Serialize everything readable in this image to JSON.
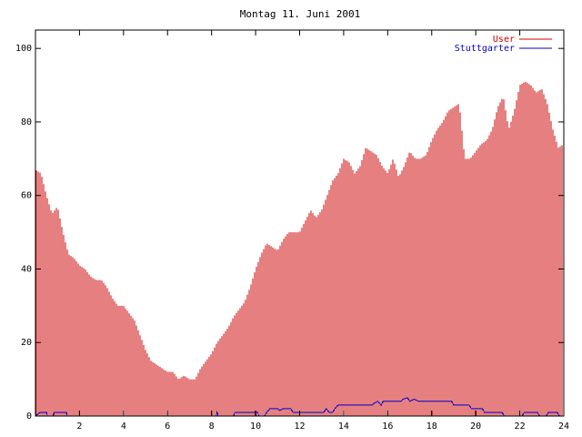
{
  "chart_data": {
    "type": "bar",
    "title": "Montag 11. Juni 2001",
    "xlabel": "",
    "ylabel": "",
    "xlim": [
      0,
      24
    ],
    "ylim": [
      0,
      105
    ],
    "x_ticks": [
      2,
      4,
      6,
      8,
      10,
      12,
      14,
      16,
      18,
      20,
      22,
      24
    ],
    "y_ticks": [
      0,
      20,
      40,
      60,
      80,
      100
    ],
    "legend_position": "top-right",
    "grid": false,
    "series": [
      {
        "name": "User",
        "render": "impulses",
        "color": "#cc0000",
        "points": [
          [
            0,
            67
          ],
          [
            0.25,
            66
          ],
          [
            0.5,
            60
          ],
          [
            0.75,
            55
          ],
          [
            1,
            57
          ],
          [
            1.25,
            50
          ],
          [
            1.5,
            44
          ],
          [
            1.75,
            43
          ],
          [
            2,
            41
          ],
          [
            2.25,
            40
          ],
          [
            2.5,
            38
          ],
          [
            2.75,
            37
          ],
          [
            3,
            37
          ],
          [
            3.25,
            35
          ],
          [
            3.5,
            32
          ],
          [
            3.75,
            30
          ],
          [
            4,
            30
          ],
          [
            4.25,
            28
          ],
          [
            4.5,
            26
          ],
          [
            4.75,
            22
          ],
          [
            5,
            18
          ],
          [
            5.25,
            15
          ],
          [
            5.5,
            14
          ],
          [
            5.75,
            13
          ],
          [
            6,
            12
          ],
          [
            6.25,
            12
          ],
          [
            6.5,
            10
          ],
          [
            6.75,
            11
          ],
          [
            7,
            10
          ],
          [
            7.25,
            10
          ],
          [
            7.5,
            13
          ],
          [
            7.75,
            15
          ],
          [
            8,
            17
          ],
          [
            8.25,
            20
          ],
          [
            8.5,
            22
          ],
          [
            8.75,
            24
          ],
          [
            9,
            27
          ],
          [
            9.25,
            29
          ],
          [
            9.5,
            31
          ],
          [
            9.75,
            35
          ],
          [
            10,
            40
          ],
          [
            10.25,
            44
          ],
          [
            10.5,
            47
          ],
          [
            10.75,
            46
          ],
          [
            11,
            45
          ],
          [
            11.25,
            48
          ],
          [
            11.5,
            50
          ],
          [
            11.75,
            50
          ],
          [
            12,
            50
          ],
          [
            12.25,
            53
          ],
          [
            12.5,
            56
          ],
          [
            12.75,
            54
          ],
          [
            13,
            56
          ],
          [
            13.25,
            60
          ],
          [
            13.5,
            64
          ],
          [
            13.75,
            66
          ],
          [
            14,
            70
          ],
          [
            14.25,
            69
          ],
          [
            14.5,
            66
          ],
          [
            14.75,
            68
          ],
          [
            15,
            73
          ],
          [
            15.25,
            72
          ],
          [
            15.5,
            71
          ],
          [
            15.75,
            68
          ],
          [
            16,
            66
          ],
          [
            16.25,
            70
          ],
          [
            16.5,
            65
          ],
          [
            16.75,
            68
          ],
          [
            17,
            72
          ],
          [
            17.25,
            70
          ],
          [
            17.5,
            70
          ],
          [
            17.75,
            71
          ],
          [
            18,
            75
          ],
          [
            18.25,
            78
          ],
          [
            18.5,
            80
          ],
          [
            18.75,
            83
          ],
          [
            19,
            84
          ],
          [
            19.25,
            85
          ],
          [
            19.5,
            70
          ],
          [
            19.75,
            70
          ],
          [
            20,
            72
          ],
          [
            20.25,
            74
          ],
          [
            20.5,
            75
          ],
          [
            20.75,
            78
          ],
          [
            21,
            84
          ],
          [
            21.25,
            87
          ],
          [
            21.5,
            78
          ],
          [
            21.75,
            83
          ],
          [
            22,
            90
          ],
          [
            22.25,
            91
          ],
          [
            22.5,
            90
          ],
          [
            22.75,
            88
          ],
          [
            23,
            89
          ],
          [
            23.25,
            85
          ],
          [
            23.5,
            78
          ],
          [
            23.75,
            73
          ],
          [
            24,
            74
          ]
        ]
      },
      {
        "name": "Stuttgarter",
        "render": "line",
        "color": "#0000cc",
        "points": [
          [
            0,
            0
          ],
          [
            0.2,
            1
          ],
          [
            0.5,
            1
          ],
          [
            0.55,
            0
          ],
          [
            0.8,
            0
          ],
          [
            0.85,
            1
          ],
          [
            1.4,
            1
          ],
          [
            1.45,
            0
          ],
          [
            8.2,
            0
          ],
          [
            8.25,
            1
          ],
          [
            8.3,
            0
          ],
          [
            9,
            0
          ],
          [
            9.05,
            1
          ],
          [
            10.1,
            1
          ],
          [
            10.15,
            0
          ],
          [
            10.4,
            0
          ],
          [
            10.5,
            1
          ],
          [
            10.65,
            2
          ],
          [
            11,
            2
          ],
          [
            11.1,
            1.5
          ],
          [
            11.25,
            2
          ],
          [
            11.6,
            2
          ],
          [
            11.7,
            1
          ],
          [
            13.1,
            1
          ],
          [
            13.2,
            2
          ],
          [
            13.35,
            1
          ],
          [
            13.5,
            1
          ],
          [
            13.6,
            2
          ],
          [
            13.75,
            3
          ],
          [
            15.3,
            3
          ],
          [
            15.4,
            3.6
          ],
          [
            15.55,
            4
          ],
          [
            15.7,
            3
          ],
          [
            15.8,
            4
          ],
          [
            16.6,
            4
          ],
          [
            16.7,
            4.6
          ],
          [
            16.9,
            5
          ],
          [
            17,
            4
          ],
          [
            17.2,
            4.6
          ],
          [
            17.4,
            4
          ],
          [
            18.9,
            4
          ],
          [
            19,
            3
          ],
          [
            19.7,
            3
          ],
          [
            19.8,
            2
          ],
          [
            20.3,
            2
          ],
          [
            20.4,
            1
          ],
          [
            21.2,
            1
          ],
          [
            21.3,
            0
          ],
          [
            22.1,
            0
          ],
          [
            22.2,
            1
          ],
          [
            22.8,
            1
          ],
          [
            22.9,
            0
          ],
          [
            23.2,
            0
          ],
          [
            23.3,
            1
          ],
          [
            23.7,
            1
          ],
          [
            23.8,
            0
          ],
          [
            24,
            0
          ]
        ]
      }
    ]
  }
}
